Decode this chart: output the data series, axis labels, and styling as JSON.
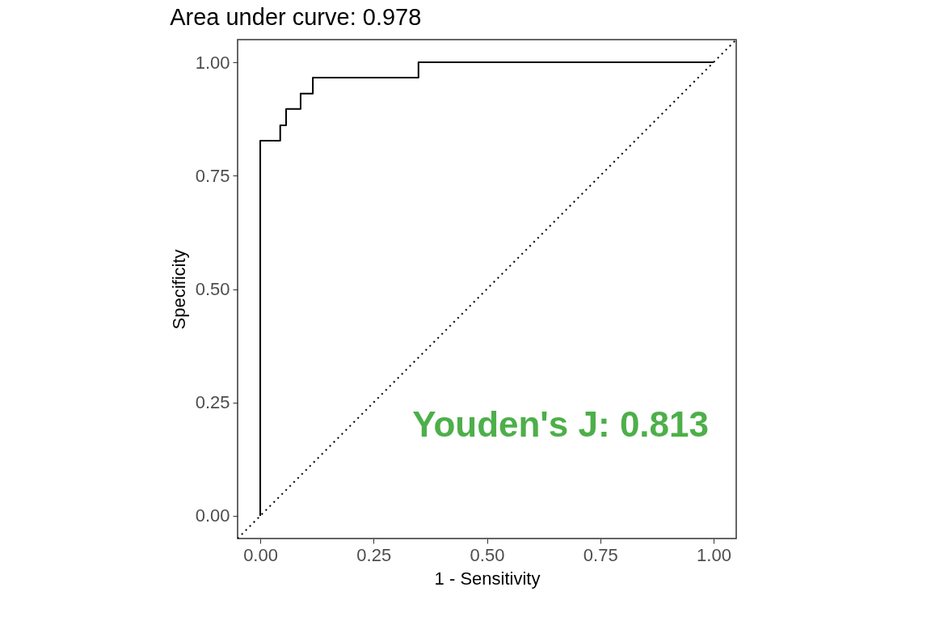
{
  "chart_data": {
    "type": "step",
    "title": "Area under curve: 0.978",
    "xlabel": "1 - Sensitivity",
    "ylabel": "Specificity",
    "xlim": [
      -0.05,
      1.05
    ],
    "ylim": [
      -0.05,
      1.05
    ],
    "xticks": [
      {
        "value": 0,
        "label": "0.00"
      },
      {
        "value": 0.25,
        "label": "0.25"
      },
      {
        "value": 0.5,
        "label": "0.50"
      },
      {
        "value": 0.75,
        "label": "0.75"
      },
      {
        "value": 1,
        "label": "1.00"
      }
    ],
    "yticks": [
      {
        "value": 0,
        "label": "0.00"
      },
      {
        "value": 0.25,
        "label": "0.25"
      },
      {
        "value": 0.5,
        "label": "0.50"
      },
      {
        "value": 0.75,
        "label": "0.75"
      },
      {
        "value": 1,
        "label": "1.00"
      }
    ],
    "grid": false,
    "marker": "none",
    "series": [
      {
        "color": "#000000",
        "line_style": "solid",
        "x": [
          0,
          0,
          0.044,
          0.057,
          0.089,
          0.116,
          0.349,
          1.0
        ],
        "values": [
          0,
          0.827,
          0.861,
          0.897,
          0.931,
          0.966,
          1.0,
          1.0
        ]
      },
      {
        "type": "line",
        "color": "#000000",
        "line_style": "dotted",
        "x": [
          -0.05,
          1.05
        ],
        "values": [
          -0.05,
          1.05
        ]
      }
    ],
    "annotations": [
      "Youden's J: 0.813"
    ]
  }
}
